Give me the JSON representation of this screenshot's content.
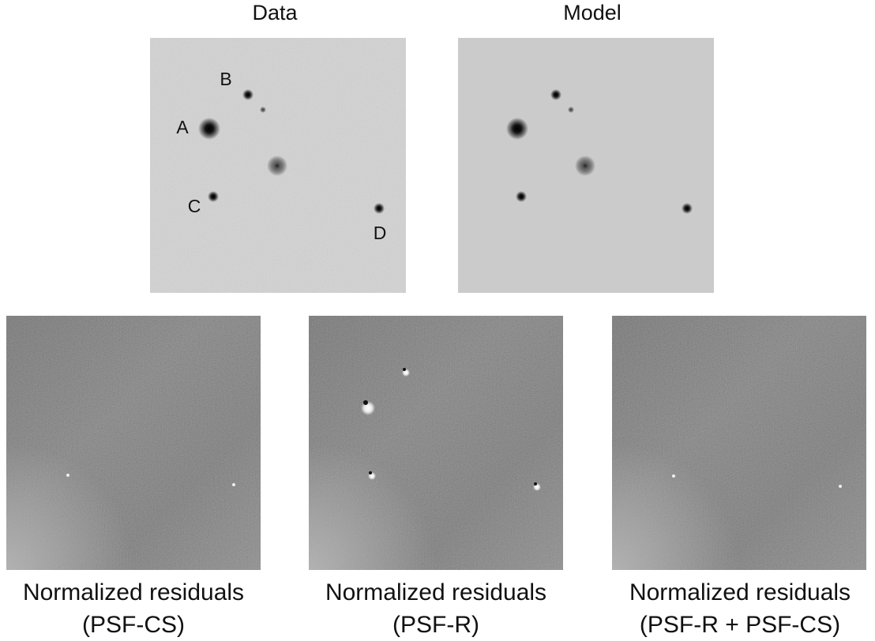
{
  "top_panels": [
    {
      "title": "Data",
      "source_labels": [
        "A",
        "B",
        "C",
        "D"
      ]
    },
    {
      "title": "Model"
    }
  ],
  "bottom_panels": [
    {
      "caption_lines": [
        "Normalized residuals",
        "(PSF-CS)"
      ]
    },
    {
      "caption_lines": [
        "Normalized residuals",
        "(PSF-R)"
      ]
    },
    {
      "caption_lines": [
        "Normalized residuals",
        "(PSF-R + PSF-CS)"
      ]
    }
  ]
}
